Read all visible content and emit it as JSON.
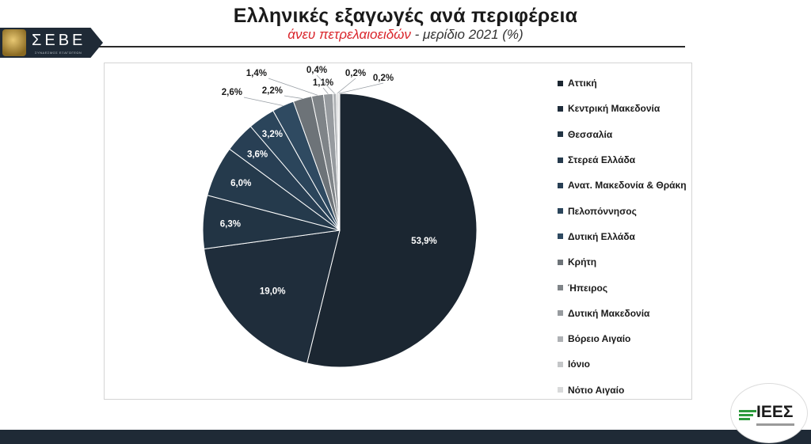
{
  "header": {
    "title": "Ελληνικές εξαγωγές ανά περιφέρεια",
    "subtitle_red": "άνευ πετρελαιοειδών",
    "subtitle_rest": " - μερίδιο 2021 (%)"
  },
  "logos": {
    "left": "ΣΕΒΕ",
    "left_sub": "ΣΥΝΔΕΣΜΟΣ ΕΞΑΓΩΓΕΩΝ",
    "right": "ΙΕΕΣ"
  },
  "chart_data": {
    "type": "pie",
    "title": "",
    "categories": [
      "Αττική",
      "Κεντρική Μακεδονία",
      "Θεσσαλία",
      "Στερεά Ελλάδα",
      "Ανατ. Μακεδονία & Θράκη",
      "Πελοπόννησος",
      "Δυτική Ελλάδα",
      "Κρήτη",
      "Ήπειρος",
      "Δυτική Μακεδονία",
      "Βόρειο Αιγαίο",
      "Ιόνιο",
      "Νότιο Αιγαίο"
    ],
    "values": [
      53.9,
      19.0,
      6.3,
      6.0,
      3.6,
      3.2,
      2.6,
      2.2,
      1.4,
      1.1,
      0.4,
      0.2,
      0.2
    ],
    "labels": [
      "53,9%",
      "19,0%",
      "6,3%",
      "6,0%",
      "3,6%",
      "3,2%",
      "2,6%",
      "2,2%",
      "1,4%",
      "1,1%",
      "0,4%",
      "0,2%",
      "0,2%"
    ],
    "colors": [
      "#1b2631",
      "#1f2d3b",
      "#223444",
      "#253a4c",
      "#283f54",
      "#2b455b",
      "#2f4a61",
      "#6d7378",
      "#7f8488",
      "#979b9f",
      "#aeb1b4",
      "#c4c6c8",
      "#d8d9da"
    ],
    "legend_position": "right"
  }
}
